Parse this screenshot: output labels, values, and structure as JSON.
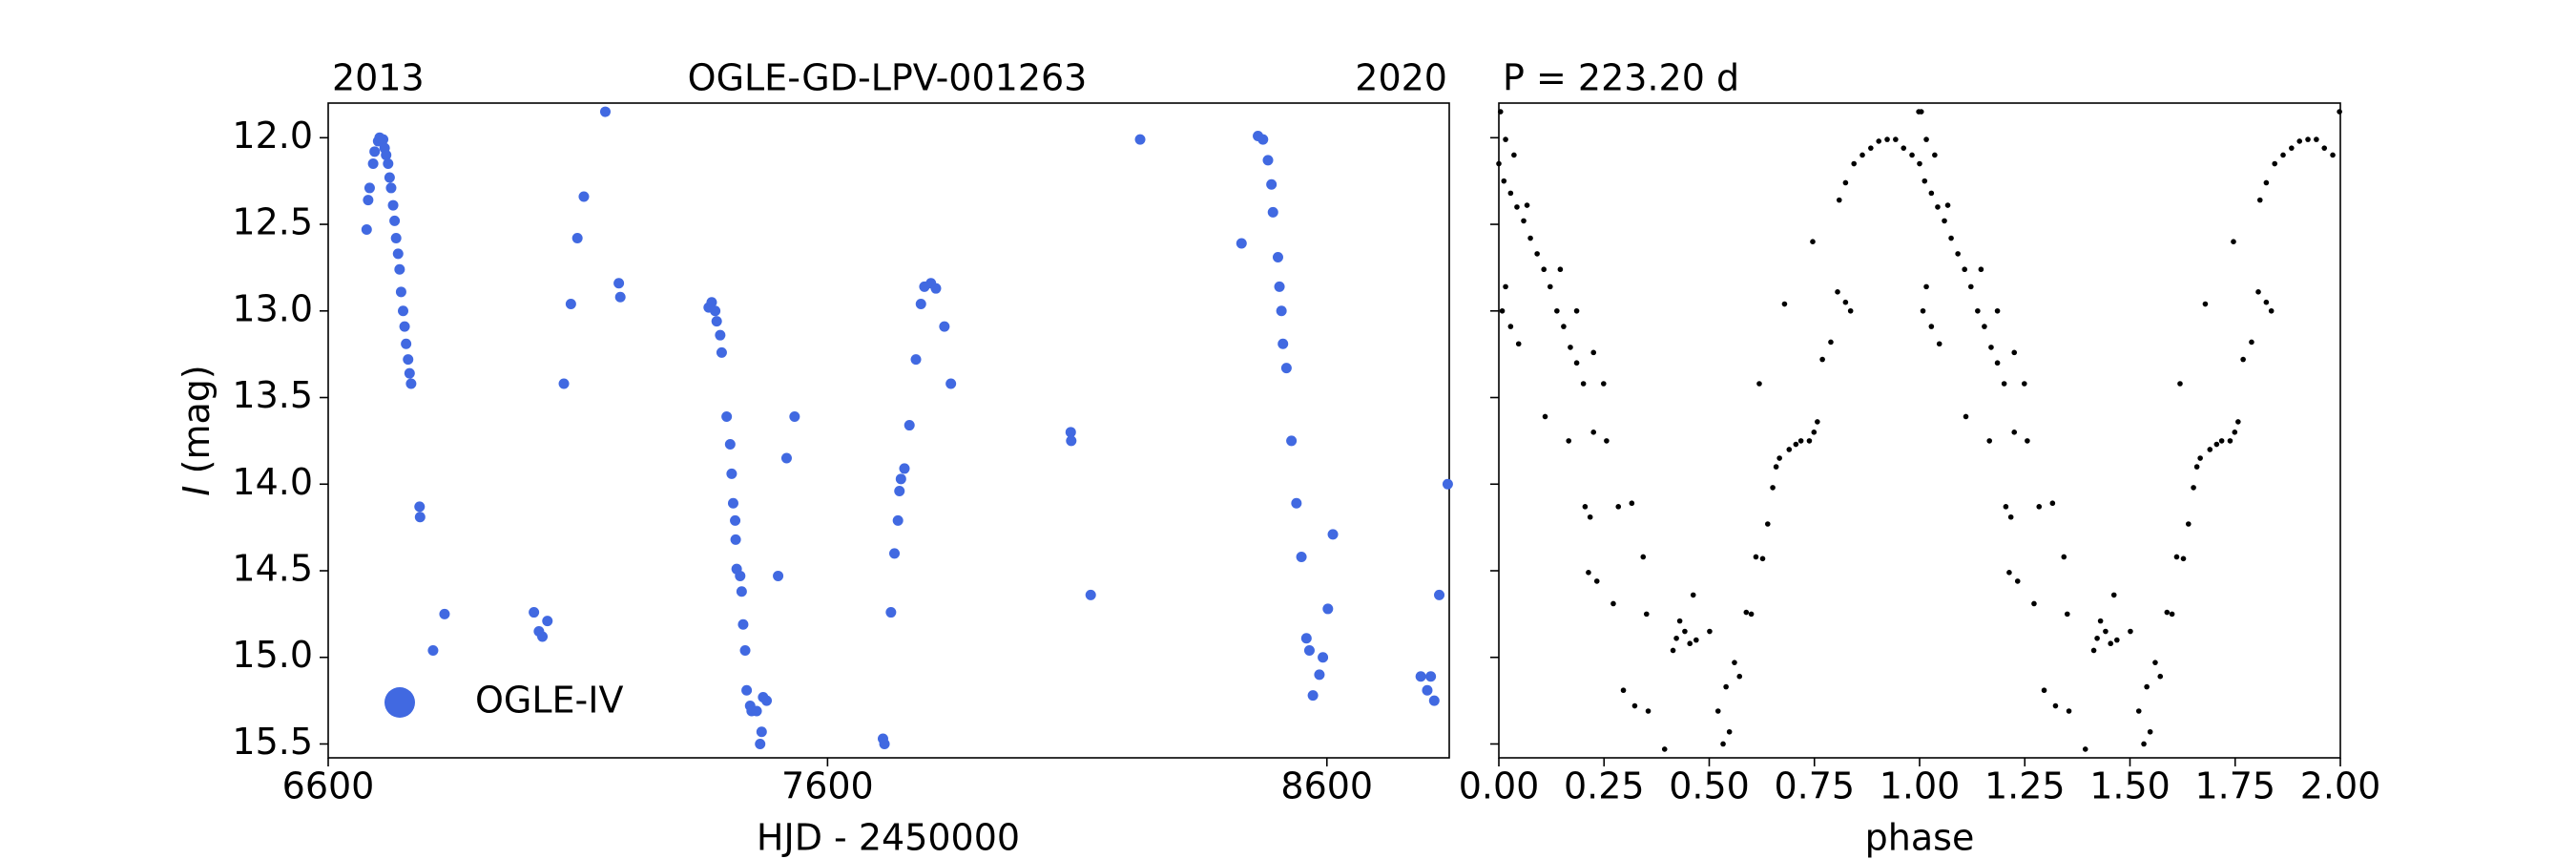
{
  "chart_data": [
    {
      "type": "scatter",
      "title": "OGLE-GD-LPV-001263",
      "year_start": "2013",
      "year_end": "2020",
      "xlabel": "HJD - 2450000",
      "ylabel_symbol": "I",
      "ylabel_unit": "(mag)",
      "xlim": [
        6600,
        8845
      ],
      "xticks": [
        6600,
        7600,
        8600
      ],
      "ylim": [
        15.58,
        11.8
      ],
      "yticks": [
        {
          "value": 12,
          "label": "12.0"
        },
        12.5,
        {
          "value": 13,
          "label": "13.0"
        },
        13.5,
        {
          "value": 14,
          "label": "14.0"
        },
        14.5,
        {
          "value": 15,
          "label": "15.0"
        },
        15.5
      ],
      "legend": "lower left",
      "series": [
        {
          "name": "OGLE-IV",
          "color": "#4169e1",
          "x": [
            6677,
            6680,
            6683,
            6690,
            6693,
            6700,
            6703,
            6710,
            6713,
            6716,
            6720,
            6723,
            6726,
            6730,
            6733,
            6736,
            6740,
            6743,
            6746,
            6750,
            6753,
            6756,
            6760,
            6763,
            6766,
            6783,
            6784,
            6810,
            6833,
            7012,
            7022,
            7029,
            7039,
            7072,
            7086,
            7099,
            7112,
            7155,
            7182,
            7185,
            7362,
            7368,
            7375,
            7378,
            7385,
            7388,
            7398,
            7405,
            7408,
            7411,
            7415,
            7416,
            7418,
            7425,
            7428,
            7431,
            7435,
            7438,
            7445,
            7448,
            7458,
            7468,
            7471,
            7465,
            7478,
            7501,
            7518,
            7534,
            7711,
            7714,
            7727,
            7734,
            7741,
            7744,
            7747,
            7754,
            7764,
            7777,
            7787,
            7794,
            7807,
            7817,
            7834,
            7847,
            8087,
            8088,
            8127,
            8226,
            8429,
            8462,
            8472,
            8482,
            8489,
            8492,
            8502,
            8505,
            8509,
            8512,
            8519,
            8529,
            8539,
            8549,
            8559,
            8565,
            8572,
            8585,
            8592,
            8602,
            8612,
            8788,
            8801,
            8808,
            8815,
            8825,
            8842
          ],
          "values": [
            12.53,
            12.36,
            12.29,
            12.15,
            12.08,
            12.02,
            12.0,
            12.01,
            12.06,
            12.1,
            12.15,
            12.23,
            12.29,
            12.39,
            12.48,
            12.58,
            12.67,
            12.76,
            12.89,
            13.0,
            13.09,
            13.19,
            13.28,
            13.36,
            13.42,
            14.13,
            14.19,
            14.96,
            14.75,
            14.74,
            14.85,
            14.88,
            14.79,
            13.42,
            12.96,
            12.58,
            12.34,
            11.85,
            12.84,
            12.92,
            12.98,
            12.95,
            13.0,
            13.06,
            13.14,
            13.24,
            13.61,
            13.77,
            13.94,
            14.11,
            14.21,
            14.32,
            14.49,
            14.53,
            14.62,
            14.81,
            14.96,
            15.19,
            15.28,
            15.31,
            15.31,
            15.43,
            15.23,
            15.5,
            15.25,
            14.53,
            13.85,
            13.61,
            15.47,
            15.5,
            14.74,
            14.4,
            14.21,
            14.04,
            13.97,
            13.91,
            13.66,
            13.28,
            12.96,
            12.86,
            12.84,
            12.87,
            13.09,
            13.42,
            13.7,
            13.75,
            14.64,
            12.01,
            12.61,
            11.99,
            12.01,
            12.13,
            12.27,
            12.43,
            12.69,
            12.86,
            13.0,
            13.19,
            13.33,
            13.75,
            14.11,
            14.42,
            14.89,
            14.96,
            15.22,
            15.1,
            15.0,
            14.72,
            14.29,
            15.11,
            15.19,
            15.11,
            15.25,
            14.64,
            14.0
          ]
        }
      ]
    },
    {
      "type": "scatter",
      "period_label": "P = 223.20 d",
      "xlabel": "phase",
      "xlim": [
        0,
        2
      ],
      "xticks": [
        {
          "value": 0,
          "label": "0.00"
        },
        0.25,
        {
          "value": 0.5,
          "label": "0.50"
        },
        0.75,
        {
          "value": 1,
          "label": "1.00"
        },
        1.25,
        {
          "value": 1.5,
          "label": "1.50"
        },
        1.75,
        {
          "value": 2,
          "label": "2.00"
        }
      ],
      "ylim": [
        15.58,
        11.8
      ],
      "yticks": [
        12,
        12.5,
        13,
        13.5,
        14,
        14.5,
        15,
        15.5
      ],
      "ytick_labels": false,
      "series": [
        {
          "color": "#000000",
          "x": [
            0.0,
            0.012,
            0.028,
            0.043,
            0.059,
            0.075,
            0.091,
            0.107,
            0.122,
            0.138,
            0.154,
            0.17,
            0.185,
            0.201,
            0.004,
            0.016,
            0.036,
            0.067,
            0.146,
            0.185,
            0.225,
            0.249,
            0.008,
            0.028,
            0.047,
            0.016,
            0.11,
            0.166,
            0.225,
            0.256,
            0.205,
            0.217,
            0.284,
            0.316,
            0.213,
            0.233,
            0.272,
            0.343,
            0.351,
            0.296,
            0.323,
            0.355,
            0.394,
            0.414,
            0.422,
            0.43,
            0.442,
            0.454,
            0.462,
            0.469,
            0.501,
            0.521,
            0.533,
            0.54,
            0.548,
            0.56,
            0.572,
            0.588,
            0.6,
            0.611,
            0.627,
            0.639,
            0.651,
            0.659,
            0.667,
            0.679,
            0.69,
            0.706,
            0.718,
            0.738,
            0.749,
            0.757,
            0.619,
            0.746,
            0.769,
            0.789,
            0.805,
            0.824,
            0.836,
            0.809,
            0.824,
            0.844,
            0.864,
            0.884,
            0.903,
            0.923,
            0.943,
            0.962,
            0.982,
            0.998,
            1.0,
            1.012,
            1.028,
            1.043,
            1.059,
            1.075,
            1.091,
            1.107,
            1.122,
            1.138,
            1.154,
            1.17,
            1.185,
            1.201,
            1.004,
            1.016,
            1.036,
            1.067,
            1.146,
            1.185,
            1.225,
            1.249,
            1.008,
            1.028,
            1.047,
            1.016,
            1.11,
            1.166,
            1.225,
            1.256,
            1.205,
            1.217,
            1.284,
            1.316,
            1.213,
            1.233,
            1.272,
            1.343,
            1.351,
            1.296,
            1.323,
            1.355,
            1.394,
            1.414,
            1.422,
            1.43,
            1.442,
            1.454,
            1.462,
            1.469,
            1.501,
            1.521,
            1.533,
            1.54,
            1.548,
            1.56,
            1.572,
            1.588,
            1.6,
            1.611,
            1.627,
            1.639,
            1.651,
            1.659,
            1.667,
            1.679,
            1.69,
            1.706,
            1.718,
            1.738,
            1.749,
            1.757,
            1.619,
            1.746,
            1.769,
            1.789,
            1.805,
            1.824,
            1.836,
            1.809,
            1.824,
            1.844,
            1.864,
            1.884,
            1.903,
            1.923,
            1.943,
            1.962,
            1.982,
            1.998
          ],
          "values": [
            12.15,
            12.25,
            12.32,
            12.4,
            12.48,
            12.58,
            12.67,
            12.76,
            12.86,
            13.0,
            13.09,
            13.21,
            13.3,
            13.42,
            11.85,
            12.01,
            12.1,
            12.39,
            12.76,
            13.0,
            13.24,
            13.42,
            13.0,
            13.09,
            13.19,
            12.86,
            13.61,
            13.75,
            13.7,
            13.75,
            14.13,
            14.19,
            14.13,
            14.11,
            14.51,
            14.56,
            14.69,
            14.42,
            14.75,
            15.19,
            15.28,
            15.31,
            15.53,
            14.96,
            14.89,
            14.79,
            14.85,
            14.92,
            14.64,
            14.9,
            14.85,
            15.31,
            15.5,
            15.17,
            15.43,
            15.03,
            15.11,
            14.74,
            14.75,
            14.42,
            14.43,
            14.23,
            14.02,
            13.9,
            13.85,
            12.96,
            13.8,
            13.77,
            13.75,
            13.75,
            13.7,
            13.64,
            13.42,
            12.6,
            13.28,
            13.18,
            12.89,
            12.95,
            13.0,
            12.36,
            12.26,
            12.15,
            12.1,
            12.06,
            12.02,
            12.01,
            12.01,
            12.06,
            12.1,
            11.85,
            12.15,
            12.25,
            12.32,
            12.4,
            12.48,
            12.58,
            12.67,
            12.76,
            12.86,
            13.0,
            13.09,
            13.21,
            13.3,
            13.42,
            11.85,
            12.01,
            12.1,
            12.39,
            12.76,
            13.0,
            13.24,
            13.42,
            13.0,
            13.09,
            13.19,
            12.86,
            13.61,
            13.75,
            13.7,
            13.75,
            14.13,
            14.19,
            14.13,
            14.11,
            14.51,
            14.56,
            14.69,
            14.42,
            14.75,
            15.19,
            15.28,
            15.31,
            15.53,
            14.96,
            14.89,
            14.79,
            14.85,
            14.92,
            14.64,
            14.9,
            14.85,
            15.31,
            15.5,
            15.17,
            15.43,
            15.03,
            15.11,
            14.74,
            14.75,
            14.42,
            14.43,
            14.23,
            14.02,
            13.9,
            13.85,
            12.96,
            13.8,
            13.77,
            13.75,
            13.75,
            13.7,
            13.64,
            13.42,
            12.6,
            13.28,
            13.18,
            12.89,
            12.95,
            13.0,
            12.36,
            12.26,
            12.15,
            12.1,
            12.06,
            12.02,
            12.01,
            12.01,
            12.06,
            12.1,
            11.85
          ]
        }
      ]
    }
  ]
}
